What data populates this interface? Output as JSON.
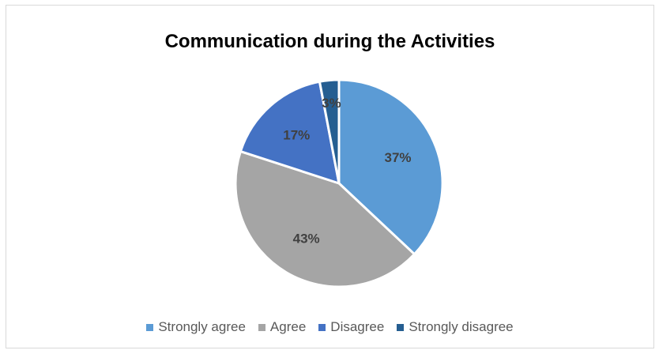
{
  "chart_data": {
    "type": "pie",
    "title": "Communication during the Activities",
    "categories": [
      "Strongly agree",
      "Agree",
      "Disagree",
      "Strongly disagree"
    ],
    "values": [
      37,
      43,
      17,
      3
    ],
    "labels": [
      "37%",
      "43%",
      "17%",
      "3%"
    ],
    "colors": [
      "#5b9bd5",
      "#a5a5a5",
      "#4472c4",
      "#255e91"
    ],
    "legend_position": "bottom"
  }
}
